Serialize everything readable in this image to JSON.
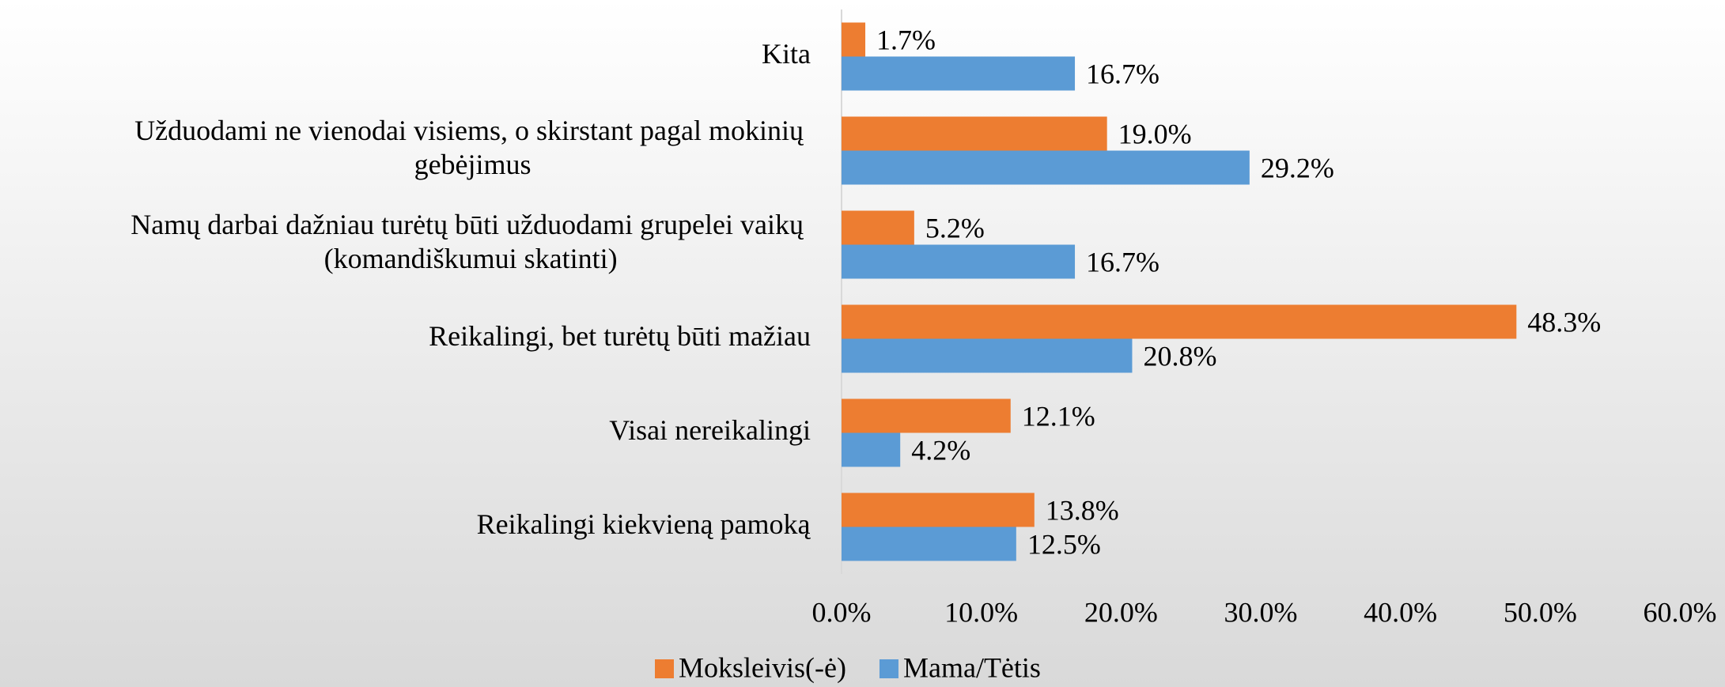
{
  "chart_data": {
    "type": "hbar",
    "categories": [
      "Kita",
      "Užduodami ne vienodai visiems, o skirstant pagal mokinių gebėjimus",
      "Namų darbai dažniau turėtų būti užduodami grupelei vaikų (komandiškumui skatinti)",
      "Reikalingi, bet turėtų būti mažiau",
      "Visai nereikalingi",
      "Reikalingi kiekvieną pamoką"
    ],
    "series": [
      {
        "name": "Moksleivis(-ė)",
        "color": "#ED7D31",
        "values": [
          1.7,
          19.0,
          5.2,
          48.3,
          12.1,
          13.8
        ],
        "value_labels": [
          "1.7%",
          "19.0%",
          "5.2%",
          "48.3%",
          "12.1%",
          "13.8%"
        ]
      },
      {
        "name": "Mama/Tėtis",
        "color": "#5B9BD5",
        "values": [
          16.7,
          29.2,
          16.7,
          20.8,
          4.2,
          12.5
        ],
        "value_labels": [
          "16.7%",
          "29.2%",
          "16.7%",
          "20.8%",
          "4.2%",
          "12.5%"
        ]
      }
    ],
    "xlim": [
      0,
      60
    ],
    "xticks": [
      {
        "value": 0,
        "label": "0.0%"
      },
      {
        "value": 10,
        "label": "10.0%"
      },
      {
        "value": 20,
        "label": "20.0%"
      },
      {
        "value": 30,
        "label": "30.0%"
      },
      {
        "value": 40,
        "label": "40.0%"
      },
      {
        "value": 50,
        "label": "50.0%"
      },
      {
        "value": 60,
        "label": "60.0%"
      }
    ],
    "legend": "bottom",
    "grid": false
  }
}
